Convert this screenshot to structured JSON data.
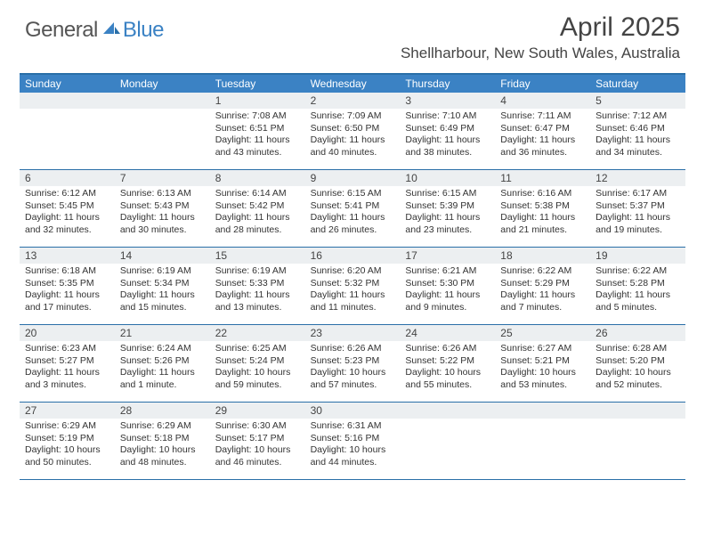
{
  "logo": {
    "general": "General",
    "blue": "Blue"
  },
  "title": {
    "month": "April 2025",
    "location": "Shellharbour, New South Wales, Australia"
  },
  "colors": {
    "header_bg": "#3b82c4",
    "border": "#2a6fa8",
    "daynum_bg": "#eceff1",
    "text": "#333333"
  },
  "day_headers": [
    "Sunday",
    "Monday",
    "Tuesday",
    "Wednesday",
    "Thursday",
    "Friday",
    "Saturday"
  ],
  "weeks": [
    [
      null,
      null,
      {
        "n": "1",
        "sr": "7:08 AM",
        "ss": "6:51 PM",
        "dl": "11 hours and 43 minutes."
      },
      {
        "n": "2",
        "sr": "7:09 AM",
        "ss": "6:50 PM",
        "dl": "11 hours and 40 minutes."
      },
      {
        "n": "3",
        "sr": "7:10 AM",
        "ss": "6:49 PM",
        "dl": "11 hours and 38 minutes."
      },
      {
        "n": "4",
        "sr": "7:11 AM",
        "ss": "6:47 PM",
        "dl": "11 hours and 36 minutes."
      },
      {
        "n": "5",
        "sr": "7:12 AM",
        "ss": "6:46 PM",
        "dl": "11 hours and 34 minutes."
      }
    ],
    [
      {
        "n": "6",
        "sr": "6:12 AM",
        "ss": "5:45 PM",
        "dl": "11 hours and 32 minutes."
      },
      {
        "n": "7",
        "sr": "6:13 AM",
        "ss": "5:43 PM",
        "dl": "11 hours and 30 minutes."
      },
      {
        "n": "8",
        "sr": "6:14 AM",
        "ss": "5:42 PM",
        "dl": "11 hours and 28 minutes."
      },
      {
        "n": "9",
        "sr": "6:15 AM",
        "ss": "5:41 PM",
        "dl": "11 hours and 26 minutes."
      },
      {
        "n": "10",
        "sr": "6:15 AM",
        "ss": "5:39 PM",
        "dl": "11 hours and 23 minutes."
      },
      {
        "n": "11",
        "sr": "6:16 AM",
        "ss": "5:38 PM",
        "dl": "11 hours and 21 minutes."
      },
      {
        "n": "12",
        "sr": "6:17 AM",
        "ss": "5:37 PM",
        "dl": "11 hours and 19 minutes."
      }
    ],
    [
      {
        "n": "13",
        "sr": "6:18 AM",
        "ss": "5:35 PM",
        "dl": "11 hours and 17 minutes."
      },
      {
        "n": "14",
        "sr": "6:19 AM",
        "ss": "5:34 PM",
        "dl": "11 hours and 15 minutes."
      },
      {
        "n": "15",
        "sr": "6:19 AM",
        "ss": "5:33 PM",
        "dl": "11 hours and 13 minutes."
      },
      {
        "n": "16",
        "sr": "6:20 AM",
        "ss": "5:32 PM",
        "dl": "11 hours and 11 minutes."
      },
      {
        "n": "17",
        "sr": "6:21 AM",
        "ss": "5:30 PM",
        "dl": "11 hours and 9 minutes."
      },
      {
        "n": "18",
        "sr": "6:22 AM",
        "ss": "5:29 PM",
        "dl": "11 hours and 7 minutes."
      },
      {
        "n": "19",
        "sr": "6:22 AM",
        "ss": "5:28 PM",
        "dl": "11 hours and 5 minutes."
      }
    ],
    [
      {
        "n": "20",
        "sr": "6:23 AM",
        "ss": "5:27 PM",
        "dl": "11 hours and 3 minutes."
      },
      {
        "n": "21",
        "sr": "6:24 AM",
        "ss": "5:26 PM",
        "dl": "11 hours and 1 minute."
      },
      {
        "n": "22",
        "sr": "6:25 AM",
        "ss": "5:24 PM",
        "dl": "10 hours and 59 minutes."
      },
      {
        "n": "23",
        "sr": "6:26 AM",
        "ss": "5:23 PM",
        "dl": "10 hours and 57 minutes."
      },
      {
        "n": "24",
        "sr": "6:26 AM",
        "ss": "5:22 PM",
        "dl": "10 hours and 55 minutes."
      },
      {
        "n": "25",
        "sr": "6:27 AM",
        "ss": "5:21 PM",
        "dl": "10 hours and 53 minutes."
      },
      {
        "n": "26",
        "sr": "6:28 AM",
        "ss": "5:20 PM",
        "dl": "10 hours and 52 minutes."
      }
    ],
    [
      {
        "n": "27",
        "sr": "6:29 AM",
        "ss": "5:19 PM",
        "dl": "10 hours and 50 minutes."
      },
      {
        "n": "28",
        "sr": "6:29 AM",
        "ss": "5:18 PM",
        "dl": "10 hours and 48 minutes."
      },
      {
        "n": "29",
        "sr": "6:30 AM",
        "ss": "5:17 PM",
        "dl": "10 hours and 46 minutes."
      },
      {
        "n": "30",
        "sr": "6:31 AM",
        "ss": "5:16 PM",
        "dl": "10 hours and 44 minutes."
      },
      null,
      null,
      null
    ]
  ],
  "labels": {
    "sunrise": "Sunrise:",
    "sunset": "Sunset:",
    "daylight": "Daylight:"
  }
}
